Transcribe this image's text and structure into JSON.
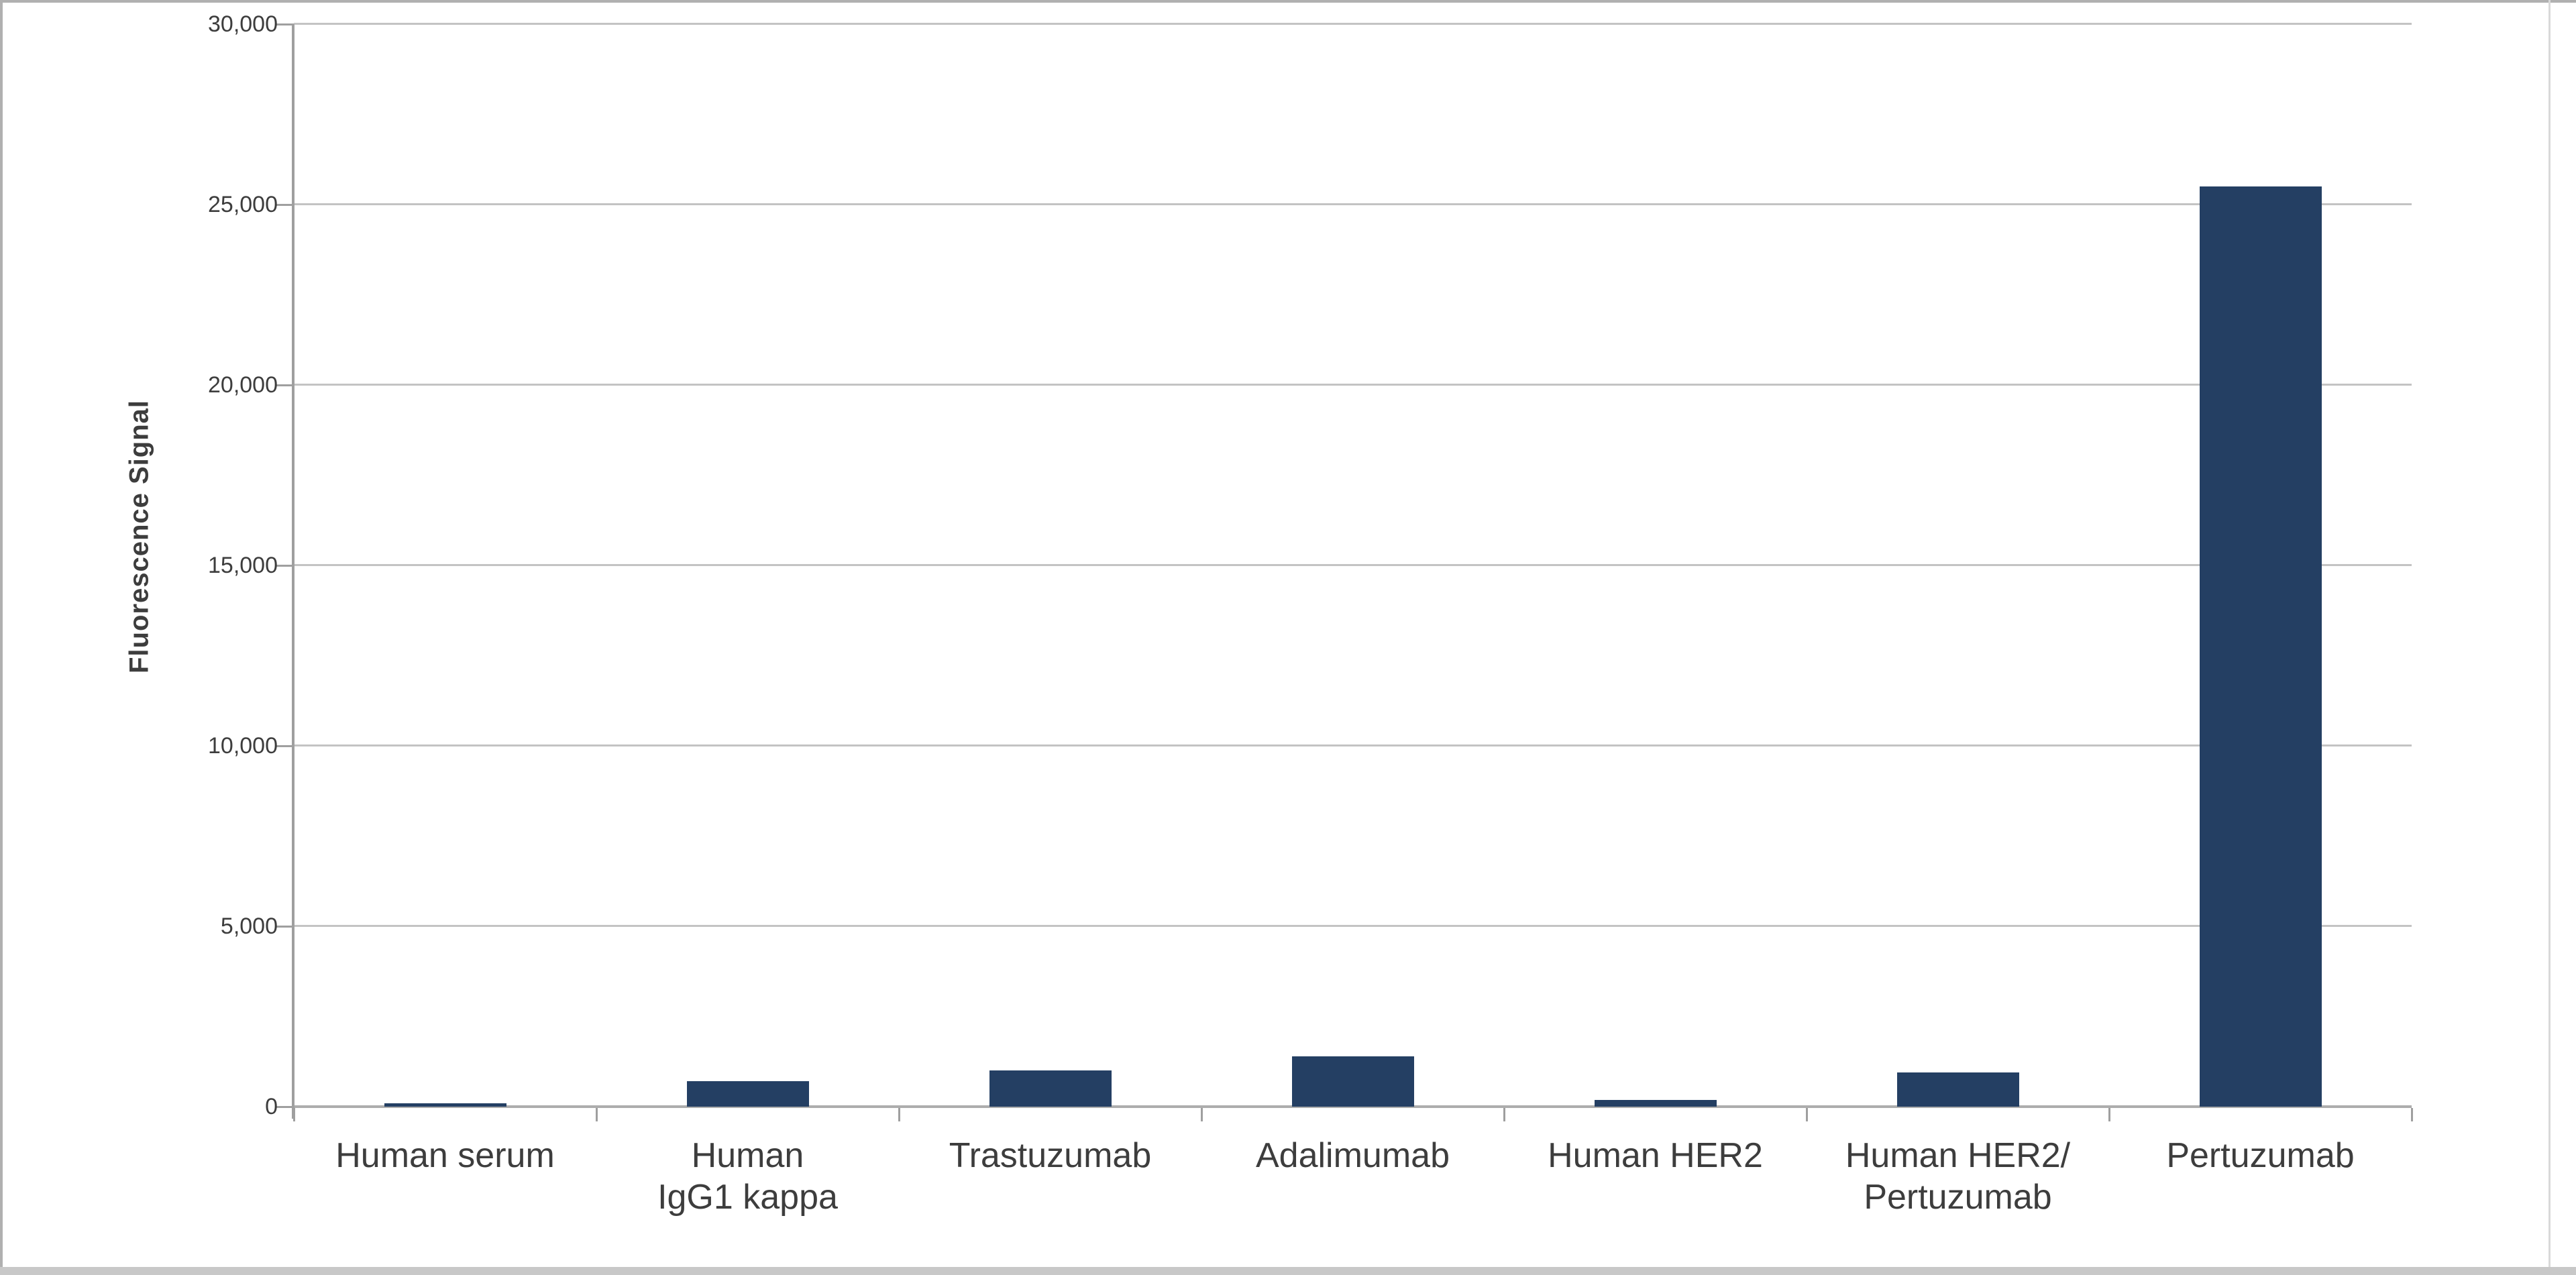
{
  "chart_data": {
    "type": "bar",
    "title": "",
    "ylabel": "Fluorescence Signal",
    "xlabel": "",
    "categories": [
      "Human serum",
      "Human\nIgG1 kappa",
      "Trastuzumab",
      "Adalimumab",
      "Human HER2",
      "Human HER2/\nPertuzumab",
      "Pertuzumab"
    ],
    "values": [
      100,
      700,
      1000,
      1400,
      180,
      950,
      25500
    ],
    "ylim": [
      0,
      30000
    ],
    "ytick_step": 5000,
    "ytick_labels": [
      "0",
      "5,000",
      "10,000",
      "15,000",
      "20,000",
      "25,000",
      "30,000"
    ],
    "grid": "horizontal-major",
    "legend": "none"
  },
  "colors": {
    "background": "#ffffff",
    "bar": "#243f63",
    "gridline": "#c3c3c3",
    "axis_line": "#9f9f9f",
    "zero_baseline": "#adadad",
    "text": "#3d3d3d",
    "frame_top_left": "#b0b0b0",
    "frame_right": "#d9d9d9",
    "frame_bottom": "#c8c8c8"
  }
}
